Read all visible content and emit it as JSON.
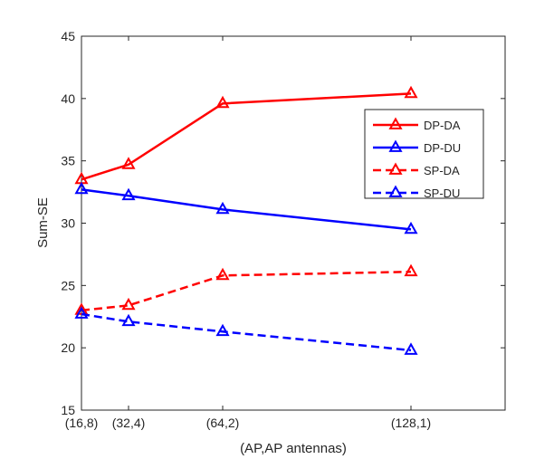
{
  "chart_data": {
    "type": "line",
    "xlabel": "(AP,AP antennas)",
    "ylabel": "Sum-SE",
    "categories": [
      "(16,8)",
      "(32,4)",
      "(64,2)",
      "(128,1)"
    ],
    "x": [
      16,
      32,
      64,
      128
    ],
    "xlim": [
      16,
      160
    ],
    "ylim": [
      15,
      45
    ],
    "yticks": [
      15,
      20,
      25,
      30,
      35,
      40,
      45
    ],
    "grid": false,
    "legend_position": "right",
    "series": [
      {
        "name": "DP-DA",
        "values": [
          33.5,
          34.7,
          39.6,
          40.4
        ],
        "color": "#ff0000",
        "dash": "solid",
        "marker": "triangle"
      },
      {
        "name": "DP-DU",
        "values": [
          32.7,
          32.2,
          31.1,
          29.5
        ],
        "color": "#0000ff",
        "dash": "solid",
        "marker": "triangle"
      },
      {
        "name": "SP-DA",
        "values": [
          23.0,
          23.4,
          25.8,
          26.1
        ],
        "color": "#ff0000",
        "dash": "dashed",
        "marker": "triangle"
      },
      {
        "name": "SP-DU",
        "values": [
          22.7,
          22.1,
          21.3,
          19.8
        ],
        "color": "#0000ff",
        "dash": "dashed",
        "marker": "triangle"
      }
    ]
  }
}
